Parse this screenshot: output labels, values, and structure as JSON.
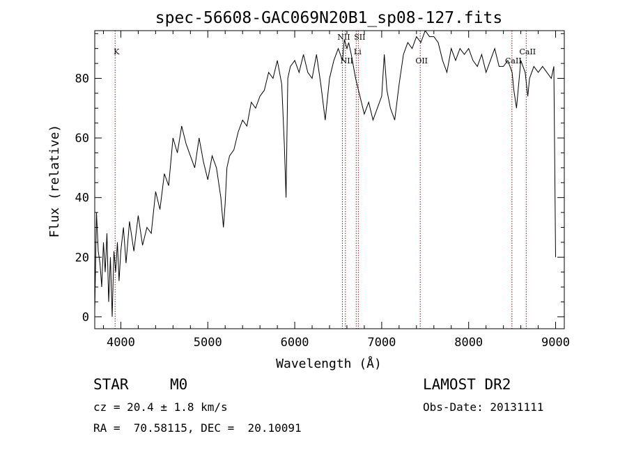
{
  "chart_data": {
    "type": "line",
    "title": "spec-56608-GAC069N20B1_sp08-127.fits",
    "xlabel": "Wavelength (Å)",
    "ylabel": "Flux (relative)",
    "xlim": [
      3700,
      9100
    ],
    "ylim": [
      -4,
      96
    ],
    "xticks": [
      4000,
      5000,
      6000,
      7000,
      8000,
      9000
    ],
    "yticks": [
      0,
      20,
      40,
      60,
      80
    ],
    "grid": false,
    "series": [
      {
        "x": [
          3700,
          3720,
          3740,
          3760,
          3780,
          3800,
          3820,
          3840,
          3860,
          3880,
          3900,
          3920,
          3940,
          3960,
          3980,
          4000,
          4030,
          4060,
          4100,
          4150,
          4200,
          4250,
          4300,
          4350,
          4400,
          4450,
          4500,
          4550,
          4600,
          4650,
          4700,
          4750,
          4800,
          4850,
          4900,
          4950,
          5000,
          5050,
          5100,
          5150,
          5180,
          5200,
          5220,
          5250,
          5300,
          5350,
          5400,
          5450,
          5500,
          5550,
          5600,
          5650,
          5700,
          5750,
          5800,
          5850,
          5880,
          5900,
          5920,
          5950,
          6000,
          6050,
          6100,
          6150,
          6200,
          6250,
          6300,
          6350,
          6400,
          6450,
          6500,
          6550,
          6570,
          6600,
          6620,
          6650,
          6700,
          6750,
          6800,
          6850,
          6900,
          6950,
          7000,
          7030,
          7060,
          7100,
          7150,
          7200,
          7250,
          7300,
          7350,
          7400,
          7450,
          7500,
          7550,
          7600,
          7650,
          7700,
          7750,
          7800,
          7850,
          7900,
          7950,
          8000,
          8050,
          8100,
          8150,
          8200,
          8250,
          8300,
          8350,
          8400,
          8450,
          8500,
          8520,
          8550,
          8600,
          8650,
          8680,
          8700,
          8750,
          8800,
          8850,
          8900,
          8950,
          8980,
          9000
        ],
        "y": [
          2,
          35,
          22,
          18,
          10,
          25,
          15,
          28,
          5,
          20,
          0,
          22,
          15,
          25,
          12,
          22,
          30,
          18,
          32,
          22,
          34,
          24,
          30,
          28,
          42,
          36,
          48,
          44,
          60,
          55,
          64,
          58,
          54,
          50,
          60,
          52,
          46,
          54,
          50,
          40,
          30,
          38,
          50,
          54,
          56,
          62,
          66,
          64,
          72,
          70,
          74,
          76,
          82,
          80,
          86,
          78,
          58,
          40,
          80,
          84,
          86,
          82,
          88,
          82,
          80,
          88,
          78,
          66,
          80,
          86,
          90,
          86,
          93,
          90,
          92,
          88,
          80,
          74,
          68,
          72,
          66,
          70,
          74,
          88,
          76,
          70,
          66,
          78,
          88,
          92,
          90,
          94,
          92,
          96,
          94,
          94,
          92,
          86,
          82,
          90,
          86,
          90,
          88,
          90,
          86,
          84,
          88,
          82,
          86,
          90,
          84,
          84,
          86,
          82,
          76,
          70,
          86,
          82,
          74,
          80,
          84,
          82,
          84,
          82,
          80,
          84,
          20
        ],
        "color": "#000000"
      }
    ],
    "lines": [
      {
        "x": 3934,
        "label": "K",
        "label_y": 88
      },
      {
        "x": 6548,
        "label": "NII",
        "label_y": 93
      },
      {
        "x": 6583,
        "label": "NII",
        "label_y": 85
      },
      {
        "x": 6707,
        "label": "Li",
        "label_y": 88
      },
      {
        "x": 6731,
        "label": "SII",
        "label_y": 93
      },
      {
        "x": 7443,
        "label": "OII",
        "label_y": 85
      },
      {
        "x": 8498,
        "label": "CaII",
        "label_y": 85
      },
      {
        "x": 8662,
        "label": "CaII",
        "label_y": 88
      }
    ],
    "line_color": "#8b1a1a"
  },
  "info": {
    "object_class": "STAR",
    "subclass": "M0",
    "survey": "LAMOST DR2",
    "cz": "cz = 20.4 ± 1.8 km/s",
    "obs_date": "Obs-Date: 20131111",
    "coords": "RA =  70.58115, DEC =  20.10091"
  }
}
